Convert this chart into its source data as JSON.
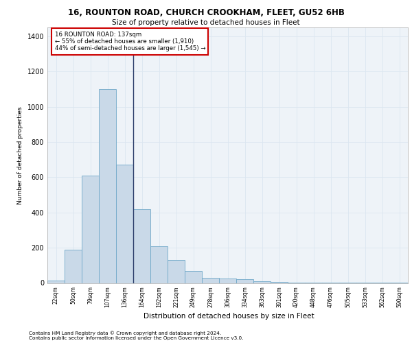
{
  "title_line1": "16, ROUNTON ROAD, CHURCH CROOKHAM, FLEET, GU52 6HB",
  "title_line2": "Size of property relative to detached houses in Fleet",
  "xlabel": "Distribution of detached houses by size in Fleet",
  "ylabel": "Number of detached properties",
  "footnote1": "Contains HM Land Registry data © Crown copyright and database right 2024.",
  "footnote2": "Contains public sector information licensed under the Open Government Licence v3.0.",
  "annotation_line1": "16 ROUNTON ROAD: 137sqm",
  "annotation_line2": "← 55% of detached houses are smaller (1,910)",
  "annotation_line3": "44% of semi-detached houses are larger (1,545) →",
  "bar_color": "#c9d9e8",
  "bar_edge_color": "#6fa8c8",
  "marker_line_color": "#2c3e6b",
  "annotation_box_color": "#ffffff",
  "annotation_box_edge": "#cc0000",
  "grid_color": "#dce6f0",
  "background_color": "#eef3f8",
  "categories": [
    "22sqm",
    "50sqm",
    "79sqm",
    "107sqm",
    "136sqm",
    "164sqm",
    "192sqm",
    "221sqm",
    "249sqm",
    "278sqm",
    "306sqm",
    "334sqm",
    "363sqm",
    "391sqm",
    "420sqm",
    "448sqm",
    "476sqm",
    "505sqm",
    "533sqm",
    "562sqm",
    "590sqm"
  ],
  "values": [
    15,
    190,
    610,
    1100,
    670,
    420,
    210,
    130,
    70,
    30,
    25,
    20,
    10,
    5,
    3,
    2,
    1,
    1,
    1,
    1,
    1
  ],
  "marker_index": 4,
  "ylim": [
    0,
    1450
  ],
  "yticks": [
    0,
    200,
    400,
    600,
    800,
    1000,
    1200,
    1400
  ]
}
